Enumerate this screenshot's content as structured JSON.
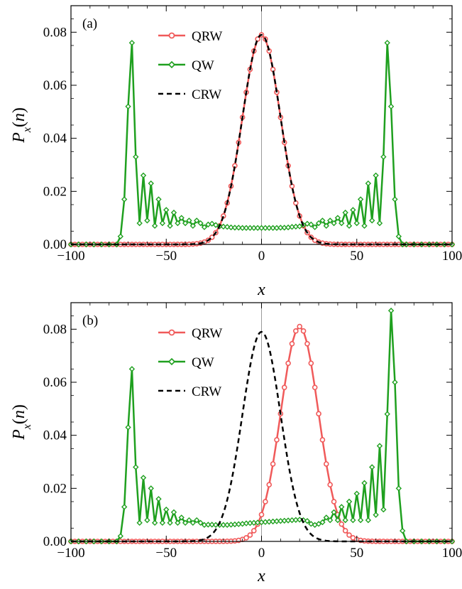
{
  "colors": {
    "QRW": "#f05a5a",
    "QW": "#1fa01f",
    "CRW": "#000000",
    "frame": "#000000",
    "zero_line": "#9a9a9a"
  },
  "ylabel_text": {
    "main": "P",
    "sub": "x",
    "args": "(n)"
  },
  "xlabel_text": "x",
  "chart_data": [
    {
      "type": "line",
      "panel_label": "(a)",
      "xlim": [
        -100,
        100
      ],
      "ylim": [
        0,
        0.09
      ],
      "xticks": [
        -100,
        -50,
        0,
        50,
        100
      ],
      "xtick_labels": [
        "−100",
        "−50",
        "0",
        "50",
        "100"
      ],
      "yticks": [
        0,
        0.02,
        0.04,
        0.06,
        0.08
      ],
      "ytick_labels": [
        "0.00",
        "0.02",
        "0.04",
        "0.06",
        "0.08"
      ],
      "xlabel": "x",
      "ylabel": "P_x(n)",
      "legend": [
        "QRW",
        "QW",
        "CRW"
      ],
      "legend_position": "top-center",
      "series": [
        {
          "name": "QRW",
          "kind": "gaussian",
          "center": 0,
          "sigma": 10,
          "peak": 0.079,
          "step": 2,
          "range": [
            -100,
            100
          ],
          "marker": "circle",
          "line": "solid"
        },
        {
          "name": "QW",
          "kind": "x_y",
          "marker": "diamond",
          "line": "solid",
          "x": [
            -100,
            -96,
            -92,
            -88,
            -84,
            -80,
            -76,
            -74,
            -72,
            -70,
            -68,
            -66,
            -64,
            -62,
            -60,
            -58,
            -56,
            -54,
            -52,
            -50,
            -48,
            -46,
            -44,
            -42,
            -40,
            -38,
            -36,
            -34,
            -32,
            -30,
            -28,
            -26,
            -24,
            -22,
            -20,
            -18,
            -16,
            -14,
            -12,
            -10,
            -8,
            -6,
            -4,
            -2,
            0,
            2,
            4,
            6,
            8,
            10,
            12,
            14,
            16,
            18,
            20,
            22,
            24,
            26,
            28,
            30,
            32,
            34,
            36,
            38,
            40,
            42,
            44,
            46,
            48,
            50,
            52,
            54,
            56,
            58,
            60,
            62,
            64,
            66,
            68,
            70,
            72,
            74,
            76,
            80,
            84,
            88,
            92,
            96,
            100
          ],
          "y": [
            0,
            0,
            0,
            0,
            0,
            0,
            0,
            0.003,
            0.017,
            0.052,
            0.076,
            0.033,
            0.008,
            0.026,
            0.009,
            0.023,
            0.007,
            0.017,
            0.008,
            0.013,
            0.007,
            0.012,
            0.008,
            0.01,
            0.008,
            0.009,
            0.007,
            0.009,
            0.008,
            0.0065,
            0.0075,
            0.0078,
            0.0073,
            0.0068,
            0.0067,
            0.0066,
            0.0064,
            0.0063,
            0.0063,
            0.0062,
            0.0062,
            0.0062,
            0.0062,
            0.0062,
            0.0062,
            0.0062,
            0.0062,
            0.0062,
            0.0062,
            0.0063,
            0.0063,
            0.0064,
            0.0066,
            0.0067,
            0.0068,
            0.0073,
            0.0078,
            0.0075,
            0.0065,
            0.008,
            0.009,
            0.007,
            0.009,
            0.008,
            0.01,
            0.008,
            0.012,
            0.007,
            0.013,
            0.008,
            0.017,
            0.007,
            0.023,
            0.009,
            0.026,
            0.008,
            0.033,
            0.076,
            0.052,
            0.017,
            0.003,
            0,
            0,
            0,
            0,
            0,
            0,
            0,
            0
          ]
        },
        {
          "name": "CRW",
          "kind": "gaussian",
          "center": 0,
          "sigma": 10,
          "peak": 0.079,
          "range": [
            -100,
            100
          ],
          "marker": "none",
          "line": "dashed"
        }
      ]
    },
    {
      "type": "line",
      "panel_label": "(b)",
      "xlim": [
        -100,
        100
      ],
      "ylim": [
        0,
        0.09
      ],
      "xticks": [
        -100,
        -50,
        0,
        50,
        100
      ],
      "xtick_labels": [
        "−100",
        "−50",
        "0",
        "50",
        "100"
      ],
      "yticks": [
        0,
        0.02,
        0.04,
        0.06,
        0.08
      ],
      "ytick_labels": [
        "0.00",
        "0.02",
        "0.04",
        "0.06",
        "0.08"
      ],
      "xlabel": "x",
      "ylabel": "P_x(n)",
      "legend": [
        "QRW",
        "QW",
        "CRW"
      ],
      "legend_position": "top-center",
      "series": [
        {
          "name": "QRW",
          "kind": "gaussian",
          "center": 20,
          "sigma": 9.8,
          "peak": 0.081,
          "step": 2,
          "range": [
            -100,
            100
          ],
          "marker": "circle",
          "line": "solid"
        },
        {
          "name": "QW",
          "kind": "x_y",
          "marker": "diamond",
          "line": "solid",
          "x": [
            -100,
            -96,
            -92,
            -88,
            -84,
            -80,
            -76,
            -74,
            -72,
            -70,
            -68,
            -66,
            -64,
            -62,
            -60,
            -58,
            -56,
            -54,
            -52,
            -50,
            -48,
            -46,
            -44,
            -42,
            -40,
            -38,
            -36,
            -34,
            -32,
            -30,
            -28,
            -26,
            -24,
            -22,
            -20,
            -18,
            -16,
            -14,
            -12,
            -10,
            -8,
            -6,
            -4,
            -2,
            0,
            2,
            4,
            6,
            8,
            10,
            12,
            14,
            16,
            18,
            20,
            22,
            24,
            26,
            28,
            30,
            32,
            34,
            36,
            38,
            40,
            42,
            44,
            46,
            48,
            50,
            52,
            54,
            56,
            58,
            60,
            62,
            64,
            66,
            68,
            70,
            72,
            74,
            76,
            80,
            84,
            88,
            92,
            96,
            100
          ],
          "y": [
            0,
            0,
            0,
            0,
            0,
            0,
            0,
            0.002,
            0.013,
            0.043,
            0.065,
            0.028,
            0.007,
            0.024,
            0.008,
            0.02,
            0.007,
            0.016,
            0.007,
            0.012,
            0.007,
            0.011,
            0.007,
            0.009,
            0.007,
            0.008,
            0.007,
            0.008,
            0.007,
            0.0062,
            0.0063,
            0.0063,
            0.0062,
            0.0062,
            0.0062,
            0.0062,
            0.0063,
            0.0064,
            0.0065,
            0.0066,
            0.0068,
            0.0069,
            0.007,
            0.0071,
            0.0072,
            0.0073,
            0.0074,
            0.0075,
            0.0076,
            0.0077,
            0.0078,
            0.0079,
            0.008,
            0.0081,
            0.0082,
            0.008,
            0.0077,
            0.0066,
            0.0062,
            0.0066,
            0.0072,
            0.009,
            0.008,
            0.011,
            0.008,
            0.013,
            0.008,
            0.015,
            0.008,
            0.018,
            0.008,
            0.022,
            0.008,
            0.028,
            0.01,
            0.036,
            0.012,
            0.048,
            0.087,
            0.06,
            0.02,
            0.004,
            0,
            0,
            0,
            0,
            0,
            0,
            0
          ]
        },
        {
          "name": "CRW",
          "kind": "gaussian",
          "center": 0,
          "sigma": 10,
          "peak": 0.079,
          "range": [
            -100,
            100
          ],
          "marker": "none",
          "line": "dashed"
        }
      ]
    }
  ]
}
